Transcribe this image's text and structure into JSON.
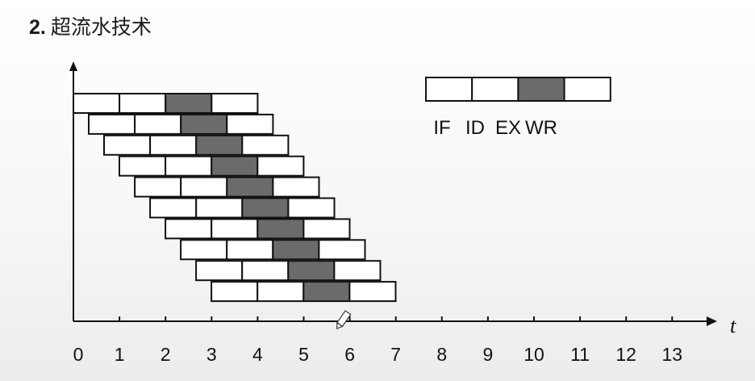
{
  "title": {
    "number": "2.",
    "text": "超流水技术"
  },
  "legend": {
    "stages": [
      "IF",
      "ID",
      "EX",
      "WR"
    ],
    "highlight_stage": "EX"
  },
  "axis": {
    "x_label": "t",
    "ticks": [
      "0",
      "1",
      "2",
      "3",
      "4",
      "5",
      "6",
      "7",
      "8",
      "9",
      "10",
      "11",
      "12",
      "13"
    ]
  },
  "pipeline": {
    "instructions": 10,
    "stages_per_instruction": 4,
    "stage_duration": 1,
    "issue_interval": 0.333,
    "highlighted_stage_index": 2
  },
  "colors": {
    "box_fill": "#ffffff",
    "highlight_fill": "#6b6b6b",
    "stroke": "#111111"
  }
}
